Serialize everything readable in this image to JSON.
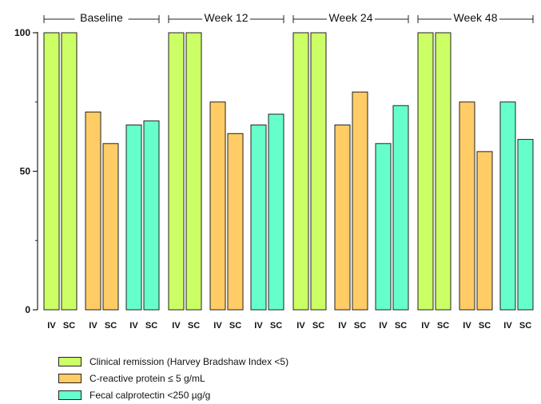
{
  "chart_data": {
    "type": "bar",
    "groups": [
      "Baseline",
      "Week 12",
      "Week 24",
      "Week 48"
    ],
    "subcategories": [
      "IV",
      "SC"
    ],
    "series": [
      {
        "name": "Clinical remission (Harvey Bradshaw Index <5)",
        "color": "#ccff66",
        "values": {
          "Baseline": {
            "IV": 100,
            "SC": 100
          },
          "Week 12": {
            "IV": 100,
            "SC": 100
          },
          "Week 24": {
            "IV": 100,
            "SC": 100
          },
          "Week 48": {
            "IV": 100,
            "SC": 100
          }
        }
      },
      {
        "name": "C-reactive protein ≤ 5 g/mL",
        "color": "#ffcc66",
        "values": {
          "Baseline": {
            "IV": 71.4,
            "SC": 60
          },
          "Week 12": {
            "IV": 75,
            "SC": 63.6
          },
          "Week 24": {
            "IV": 66.7,
            "SC": 78.6
          },
          "Week 48": {
            "IV": 75,
            "SC": 57.1
          }
        }
      },
      {
        "name": "Fecal calprotectin <250 µg/g",
        "color": "#66ffcc",
        "values": {
          "Baseline": {
            "IV": 66.7,
            "SC": 68.2
          },
          "Week 12": {
            "IV": 66.7,
            "SC": 70.6
          },
          "Week 24": {
            "IV": 60,
            "SC": 73.7
          },
          "Week 48": {
            "IV": 75,
            "SC": 61.5
          }
        }
      }
    ],
    "yticks": [
      0,
      50,
      100
    ],
    "ylim": [
      0,
      100
    ],
    "legend_position": "bottom-left"
  }
}
